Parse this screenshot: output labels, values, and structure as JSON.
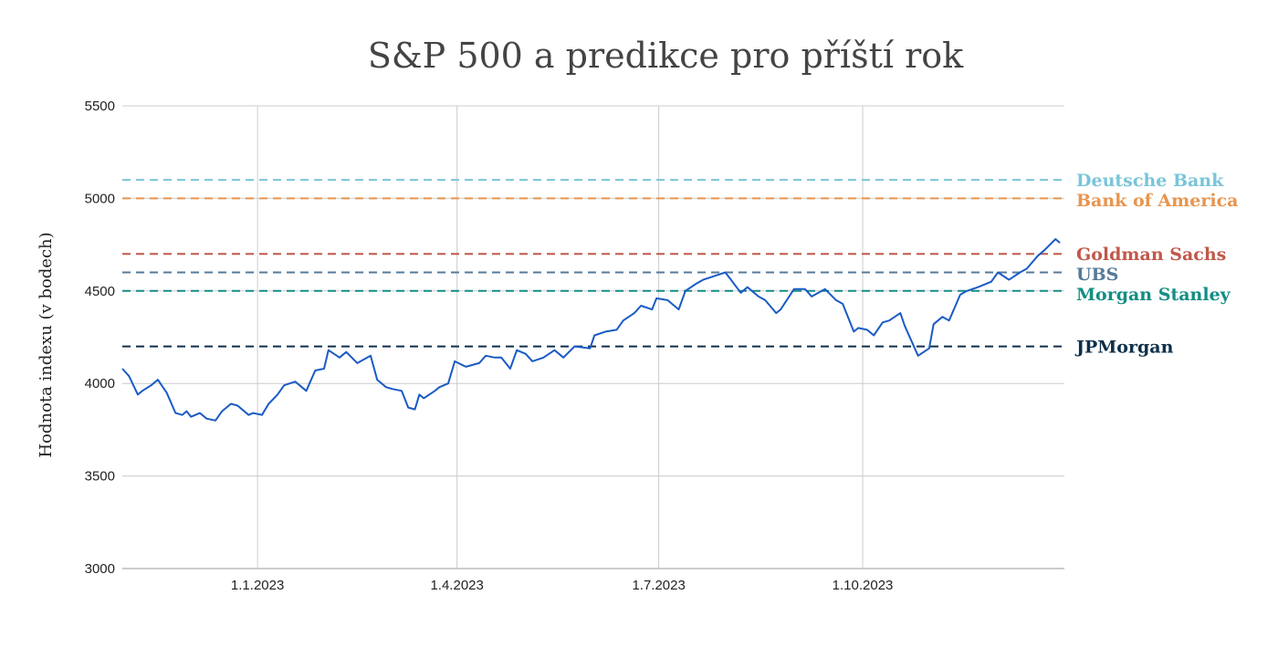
{
  "chart_data": {
    "type": "line",
    "title": "S&P 500 a predikce pro příští rok",
    "ylabel": "Hodnota indexu (v bodech)",
    "xlabel": "",
    "ylim": [
      3000,
      5500
    ],
    "yticks": [
      3000,
      3500,
      4000,
      4500,
      5000,
      5500
    ],
    "xlim": [
      "2022-11-01",
      "2023-12-31"
    ],
    "xticks": [
      {
        "date": "2023-01-01",
        "label": "1.1.2023"
      },
      {
        "date": "2023-04-01",
        "label": "1.4.2023"
      },
      {
        "date": "2023-07-01",
        "label": "1.7.2023"
      },
      {
        "date": "2023-10-01",
        "label": "1.10.2023"
      }
    ],
    "grid": true,
    "series_color": "#1a5bc4",
    "series": [
      {
        "x": [
          "2022-11-01",
          "2022-11-04",
          "2022-11-08",
          "2022-11-10",
          "2022-11-14",
          "2022-11-17",
          "2022-11-21",
          "2022-11-25",
          "2022-11-28",
          "2022-11-30",
          "2022-12-02",
          "2022-12-06",
          "2022-12-09",
          "2022-12-13",
          "2022-12-16",
          "2022-12-20",
          "2022-12-23",
          "2022-12-28",
          "2022-12-30",
          "2023-01-03",
          "2023-01-06",
          "2023-01-10",
          "2023-01-13",
          "2023-01-18",
          "2023-01-23",
          "2023-01-27",
          "2023-01-31",
          "2023-02-02",
          "2023-02-07",
          "2023-02-10",
          "2023-02-15",
          "2023-02-21",
          "2023-02-24",
          "2023-02-28",
          "2023-03-03",
          "2023-03-07",
          "2023-03-10",
          "2023-03-13",
          "2023-03-15",
          "2023-03-17",
          "2023-03-22",
          "2023-03-24",
          "2023-03-28",
          "2023-03-31",
          "2023-04-05",
          "2023-04-11",
          "2023-04-14",
          "2023-04-18",
          "2023-04-21",
          "2023-04-25",
          "2023-04-28",
          "2023-05-02",
          "2023-05-05",
          "2023-05-10",
          "2023-05-15",
          "2023-05-19",
          "2023-05-24",
          "2023-05-31",
          "2023-06-02",
          "2023-06-07",
          "2023-06-12",
          "2023-06-15",
          "2023-06-20",
          "2023-06-23",
          "2023-06-28",
          "2023-06-30",
          "2023-07-05",
          "2023-07-10",
          "2023-07-13",
          "2023-07-18",
          "2023-07-21",
          "2023-07-26",
          "2023-07-31",
          "2023-08-02",
          "2023-08-07",
          "2023-08-10",
          "2023-08-15",
          "2023-08-18",
          "2023-08-23",
          "2023-08-25",
          "2023-08-31",
          "2023-09-05",
          "2023-09-08",
          "2023-09-14",
          "2023-09-19",
          "2023-09-22",
          "2023-09-27",
          "2023-09-29",
          "2023-10-03",
          "2023-10-06",
          "2023-10-10",
          "2023-10-13",
          "2023-10-18",
          "2023-10-20",
          "2023-10-26",
          "2023-10-31",
          "2023-11-02",
          "2023-11-06",
          "2023-11-09",
          "2023-11-14",
          "2023-11-17",
          "2023-11-22",
          "2023-11-28",
          "2023-12-01",
          "2023-12-06",
          "2023-12-11",
          "2023-12-14",
          "2023-12-19",
          "2023-12-22",
          "2023-12-27",
          "2023-12-29"
        ],
        "y": [
          4080,
          4040,
          3940,
          3960,
          3990,
          4020,
          3950,
          3840,
          3830,
          3850,
          3820,
          3840,
          3810,
          3800,
          3850,
          3890,
          3880,
          3830,
          3840,
          3830,
          3890,
          3940,
          3990,
          4010,
          3960,
          4070,
          4080,
          4180,
          4140,
          4170,
          4110,
          4150,
          4020,
          3980,
          3970,
          3960,
          3870,
          3860,
          3940,
          3920,
          3960,
          3980,
          4000,
          4120,
          4090,
          4110,
          4150,
          4140,
          4140,
          4080,
          4180,
          4160,
          4120,
          4140,
          4180,
          4140,
          4200,
          4190,
          4260,
          4280,
          4290,
          4340,
          4380,
          4420,
          4400,
          4460,
          4450,
          4400,
          4500,
          4540,
          4560,
          4580,
          4600,
          4570,
          4490,
          4520,
          4470,
          4450,
          4380,
          4400,
          4510,
          4510,
          4470,
          4510,
          4450,
          4430,
          4280,
          4300,
          4290,
          4260,
          4330,
          4340,
          4380,
          4310,
          4150,
          4190,
          4320,
          4360,
          4340,
          4480,
          4500,
          4520,
          4550,
          4600,
          4560,
          4600,
          4620,
          4690,
          4720,
          4780,
          4760
        ]
      }
    ],
    "reference_lines": [
      {
        "label": "Deutsche Bank",
        "value": 5100,
        "color": "#79c5d8"
      },
      {
        "label": "Bank of America",
        "value": 5000,
        "color": "#e8954e"
      },
      {
        "label": "Goldman Sachs",
        "value": 4700,
        "color": "#c0584a"
      },
      {
        "label": "UBS",
        "value": 4600,
        "color": "#557a99"
      },
      {
        "label": "Morgan Stanley",
        "value": 4500,
        "color": "#138e84"
      },
      {
        "label": "JPMorgan",
        "value": 4200,
        "color": "#0e2f4a"
      }
    ]
  }
}
